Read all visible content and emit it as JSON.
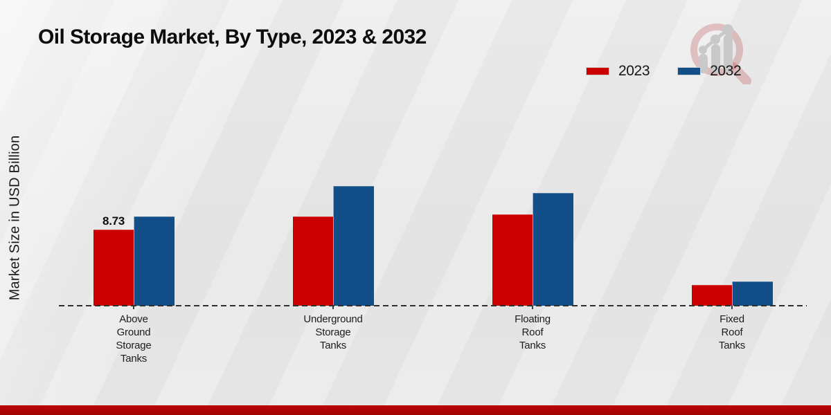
{
  "chart_data": {
    "type": "bar",
    "title": "Oil Storage Market, By Type, 2023 & 2032",
    "ylabel": "Market Size in USD Billion",
    "xlabel": "",
    "categories": [
      "Above\nGround\nStorage\nTanks",
      "Underground\nStorage\nTanks",
      "Floating\nRoof\nTanks",
      "Fixed\nRoof\nTanks"
    ],
    "series": [
      {
        "name": "2023",
        "color": "#cb0101",
        "values": [
          8.73,
          10.2,
          10.5,
          2.4
        ],
        "data_labels": [
          "8.73",
          "",
          "",
          ""
        ]
      },
      {
        "name": "2032",
        "color": "#124e87",
        "values": [
          10.2,
          13.7,
          12.9,
          2.8
        ],
        "data_labels": [
          "",
          "",
          "",
          ""
        ]
      }
    ],
    "ylim": [
      0,
      15
    ],
    "grid": false,
    "legend_position": "top-right",
    "axis_style": "dashed-baseline-only"
  },
  "watermark": {
    "name": "magnifier-bar-chart-logo",
    "ring_color": "rgba(186,80,80,0.30)",
    "bars_color": "#c9c9c9"
  },
  "footer": {
    "accent_color": "#b00505"
  }
}
